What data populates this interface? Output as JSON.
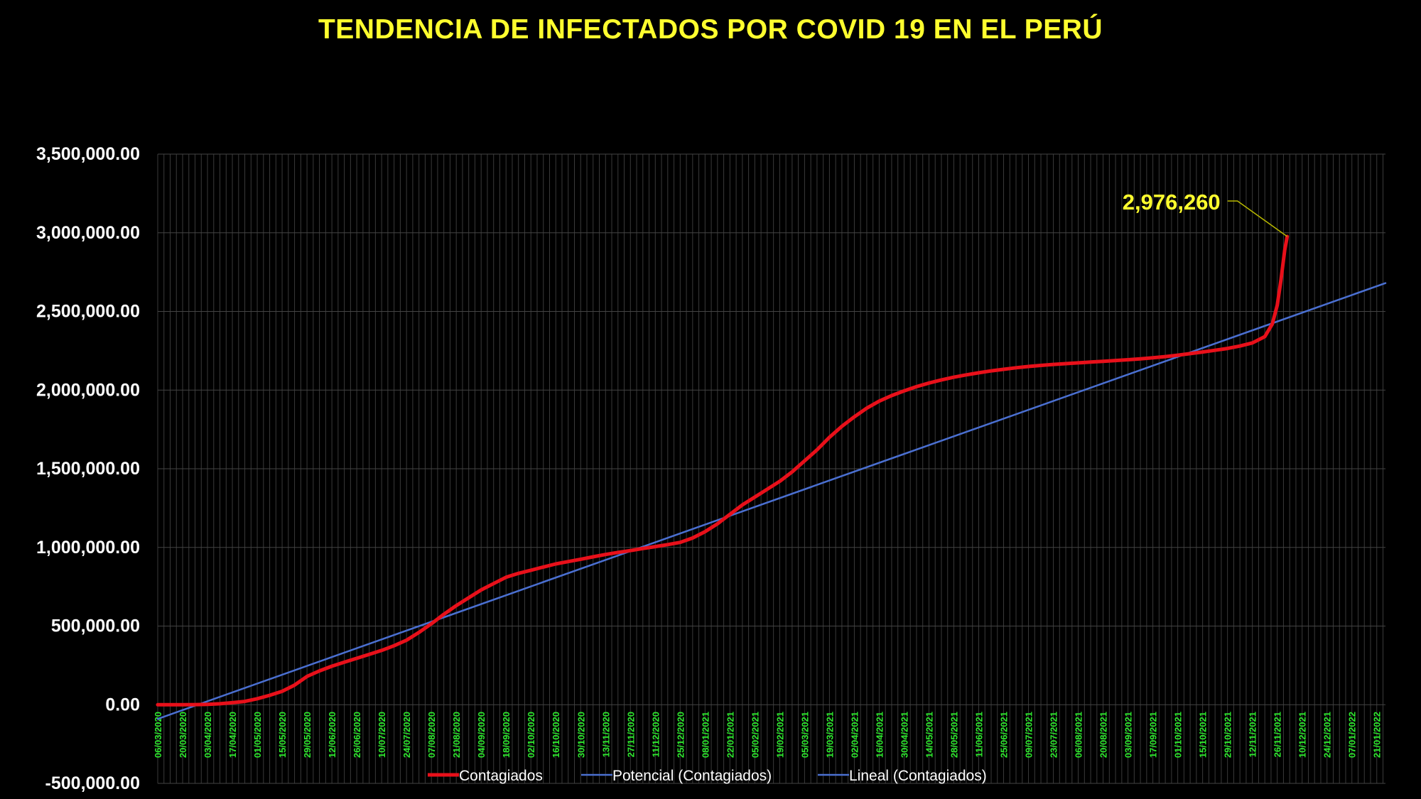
{
  "chart_data": {
    "type": "line",
    "title": "TENDENCIA DE INFECTADOS POR COVID 19 EN EL PERÚ",
    "ylim": [
      -500000,
      3500000
    ],
    "y_ticks": [
      {
        "value": 3500000,
        "label": "3,500,000.00"
      },
      {
        "value": 3000000,
        "label": "3,000,000.00"
      },
      {
        "value": 2500000,
        "label": "2,500,000.00"
      },
      {
        "value": 2000000,
        "label": "2,000,000.00"
      },
      {
        "value": 1500000,
        "label": "1,500,000.00"
      },
      {
        "value": 1000000,
        "label": "1,000,000.00"
      },
      {
        "value": 500000,
        "label": "500,000.00"
      },
      {
        "value": 0,
        "label": "0.00"
      },
      {
        "value": -500000,
        "label": "-500,000.00"
      }
    ],
    "x_tick_labels": [
      "06/03/2020",
      "20/03/2020",
      "03/04/2020",
      "17/04/2020",
      "01/05/2020",
      "15/05/2020",
      "29/05/2020",
      "12/06/2020",
      "26/06/2020",
      "10/07/2020",
      "24/07/2020",
      "07/08/2020",
      "21/08/2020",
      "04/09/2020",
      "18/09/2020",
      "02/10/2020",
      "16/10/2020",
      "30/10/2020",
      "13/11/2020",
      "27/11/2020",
      "11/12/2020",
      "25/12/2020",
      "08/01/2021",
      "22/01/2021",
      "05/02/2021",
      "19/02/2021",
      "05/03/2021",
      "19/03/2021",
      "02/04/2021",
      "16/04/2021",
      "30/04/2021",
      "14/05/2021",
      "28/05/2021",
      "11/06/2021",
      "25/06/2021",
      "09/07/2021",
      "23/07/2021",
      "06/08/2021",
      "20/08/2021",
      "03/09/2021",
      "17/09/2021",
      "01/10/2021",
      "15/10/2021",
      "29/10/2021",
      "12/11/2021",
      "26/11/2021",
      "10/12/2021",
      "24/12/2021",
      "07/01/2022",
      "21/01/2022"
    ],
    "x_last_index": 49.35,
    "grid": true,
    "legend_position": "bottom",
    "series": [
      {
        "name": "Contagiados",
        "color": "#e8101a",
        "points": [
          [
            0,
            0
          ],
          [
            1,
            0
          ],
          [
            1.5,
            500
          ],
          [
            2,
            2000
          ],
          [
            2.5,
            6000
          ],
          [
            3,
            13000
          ],
          [
            3.5,
            21000
          ],
          [
            4,
            38000
          ],
          [
            4.5,
            60000
          ],
          [
            5,
            85000
          ],
          [
            5.5,
            125000
          ],
          [
            6,
            180000
          ],
          [
            6.5,
            215000
          ],
          [
            7,
            245000
          ],
          [
            7.5,
            270000
          ],
          [
            8,
            295000
          ],
          [
            8.5,
            320000
          ],
          [
            9,
            345000
          ],
          [
            9.5,
            375000
          ],
          [
            10,
            410000
          ],
          [
            10.5,
            460000
          ],
          [
            11,
            515000
          ],
          [
            11.5,
            575000
          ],
          [
            12,
            630000
          ],
          [
            12.5,
            680000
          ],
          [
            13,
            730000
          ],
          [
            13.5,
            770000
          ],
          [
            14,
            810000
          ],
          [
            14.5,
            835000
          ],
          [
            15,
            855000
          ],
          [
            15.5,
            875000
          ],
          [
            16,
            895000
          ],
          [
            16.5,
            910000
          ],
          [
            17,
            925000
          ],
          [
            17.5,
            940000
          ],
          [
            18,
            955000
          ],
          [
            18.5,
            968000
          ],
          [
            19,
            980000
          ],
          [
            19.5,
            993000
          ],
          [
            20,
            1005000
          ],
          [
            20.5,
            1018000
          ],
          [
            21,
            1032000
          ],
          [
            21.5,
            1060000
          ],
          [
            22,
            1100000
          ],
          [
            22.5,
            1150000
          ],
          [
            23,
            1210000
          ],
          [
            23.5,
            1270000
          ],
          [
            24,
            1320000
          ],
          [
            24.5,
            1370000
          ],
          [
            25,
            1420000
          ],
          [
            25.5,
            1480000
          ],
          [
            26,
            1550000
          ],
          [
            26.5,
            1620000
          ],
          [
            27,
            1700000
          ],
          [
            27.5,
            1770000
          ],
          [
            28,
            1830000
          ],
          [
            28.5,
            1885000
          ],
          [
            29,
            1930000
          ],
          [
            29.5,
            1965000
          ],
          [
            30,
            1995000
          ],
          [
            30.5,
            2022000
          ],
          [
            31,
            2045000
          ],
          [
            31.5,
            2065000
          ],
          [
            32,
            2082000
          ],
          [
            32.5,
            2097000
          ],
          [
            33,
            2110000
          ],
          [
            33.5,
            2122000
          ],
          [
            34,
            2132000
          ],
          [
            34.5,
            2142000
          ],
          [
            35,
            2150000
          ],
          [
            35.5,
            2157000
          ],
          [
            36,
            2163000
          ],
          [
            36.5,
            2168000
          ],
          [
            37,
            2173000
          ],
          [
            37.5,
            2178000
          ],
          [
            38,
            2183000
          ],
          [
            38.5,
            2188000
          ],
          [
            39,
            2193000
          ],
          [
            39.5,
            2199000
          ],
          [
            40,
            2205000
          ],
          [
            40.5,
            2213000
          ],
          [
            41,
            2222000
          ],
          [
            41.5,
            2232000
          ],
          [
            42,
            2242000
          ],
          [
            42.5,
            2253000
          ],
          [
            43,
            2265000
          ],
          [
            43.5,
            2280000
          ],
          [
            44,
            2300000
          ],
          [
            44.5,
            2340000
          ],
          [
            44.8,
            2420000
          ],
          [
            45,
            2540000
          ],
          [
            45.15,
            2700000
          ],
          [
            45.3,
            2890000
          ],
          [
            45.4,
            2976260
          ]
        ]
      },
      {
        "name": "Potencial (Contagiados)",
        "color": "#4a6fd0",
        "points": [
          [
            0,
            -90000
          ],
          [
            49.35,
            2680000
          ]
        ]
      },
      {
        "name": "Lineal (Contagiados)",
        "color": "#4a6fd0",
        "points": [
          [
            0,
            -90000
          ],
          [
            49.35,
            2680000
          ]
        ]
      }
    ],
    "annotations": [
      {
        "text": "2,976,260",
        "x": 45.4,
        "y": 2976260
      }
    ]
  }
}
